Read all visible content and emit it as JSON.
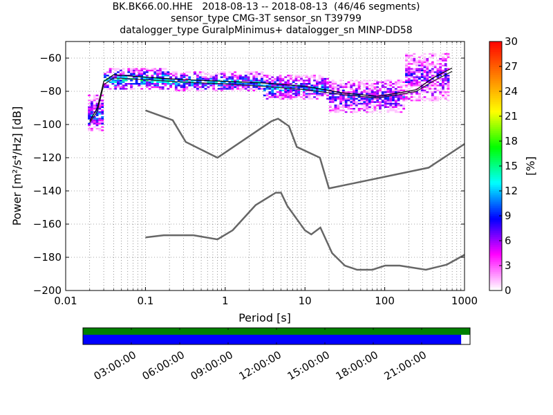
{
  "chart_data": {
    "type": "heatmap",
    "title_lines": [
      "BK.BK66.00.HHE   2018-08-13 -- 2018-08-13  (46/46 segments)",
      "sensor_type CMG-3T sensor_sn T39799",
      "datalogger_type GuralpMinimus+ datalogger_sn MINP-DD58"
    ],
    "xlabel": "Period [s]",
    "ylabel": "Power [m²/s⁴/Hz] [dB]",
    "xscale": "log",
    "xlim": [
      0.01,
      1000
    ],
    "ylim": [
      -200,
      -50
    ],
    "xticks": [
      0.01,
      0.1,
      1,
      10,
      100,
      1000
    ],
    "xtick_labels": [
      "0.01",
      "0.1",
      "1",
      "10",
      "100",
      "1000"
    ],
    "yticks": [
      -200,
      -180,
      -160,
      -140,
      -120,
      -100,
      -80,
      -60
    ],
    "grid": true,
    "colorbar": {
      "label": "[%]",
      "range": [
        0,
        30
      ],
      "ticks": [
        0,
        3,
        6,
        9,
        12,
        15,
        18,
        21,
        24,
        27,
        30
      ],
      "colors": [
        "#ffffff",
        "#ff00ff",
        "#0000ff",
        "#00ffff",
        "#00ff00",
        "#ffff00",
        "#ff8000",
        "#ff0000"
      ]
    },
    "noise_models": [
      {
        "name": "NHNM",
        "points": [
          [
            0.1,
            -91.5
          ],
          [
            0.22,
            -97.4
          ],
          [
            0.32,
            -110.5
          ],
          [
            0.8,
            -120
          ],
          [
            3.8,
            -98
          ],
          [
            4.6,
            -96.5
          ],
          [
            6.3,
            -101
          ],
          [
            7.9,
            -113.5
          ],
          [
            15.4,
            -120
          ],
          [
            20,
            -138.5
          ],
          [
            354.8,
            -126
          ],
          [
            10000,
            -80
          ]
        ]
      },
      {
        "name": "NLNM",
        "points": [
          [
            0.1,
            -168
          ],
          [
            0.17,
            -166.7
          ],
          [
            0.4,
            -166.7
          ],
          [
            0.8,
            -169.2
          ],
          [
            1.24,
            -163.7
          ],
          [
            2.4,
            -148.6
          ],
          [
            4.3,
            -141.1
          ],
          [
            5,
            -141.1
          ],
          [
            6,
            -149
          ],
          [
            10,
            -163.8
          ],
          [
            12,
            -166.2
          ],
          [
            15.6,
            -162.1
          ],
          [
            21.9,
            -177.5
          ],
          [
            31.6,
            -185
          ],
          [
            45,
            -187.5
          ],
          [
            70,
            -187.5
          ],
          [
            101,
            -185
          ],
          [
            154,
            -185
          ],
          [
            328,
            -187.5
          ],
          [
            600,
            -184.4
          ],
          [
            1000,
            -178.5
          ]
        ]
      }
    ],
    "mean_curve": [
      [
        0.02,
        -98
      ],
      [
        0.025,
        -90
      ],
      [
        0.03,
        -74
      ],
      [
        0.04,
        -70
      ],
      [
        0.1,
        -71.5
      ],
      [
        0.3,
        -73
      ],
      [
        1,
        -74
      ],
      [
        3,
        -75
      ],
      [
        10,
        -77
      ],
      [
        30,
        -81
      ],
      [
        80,
        -83
      ],
      [
        150,
        -81
      ],
      [
        250,
        -79
      ],
      [
        400,
        -72
      ],
      [
        700,
        -66
      ]
    ],
    "mode_curve": [
      [
        0.02,
        -99
      ],
      [
        0.025,
        -92
      ],
      [
        0.03,
        -76
      ],
      [
        0.04,
        -72
      ],
      [
        0.1,
        -73
      ],
      [
        0.3,
        -74.5
      ],
      [
        1,
        -75.5
      ],
      [
        3,
        -77
      ],
      [
        10,
        -79
      ],
      [
        30,
        -82
      ],
      [
        80,
        -84
      ],
      [
        150,
        -82
      ],
      [
        250,
        -80
      ],
      [
        400,
        -74
      ],
      [
        700,
        -68
      ]
    ],
    "density": [
      {
        "period": [
          0.019,
          0.03
        ],
        "power": [
          -104,
          -82
        ],
        "dominant_percent": 8
      },
      {
        "period": [
          0.03,
          0.2
        ],
        "power": [
          -79,
          -66
        ],
        "dominant_percent": 11
      },
      {
        "period": [
          0.2,
          3
        ],
        "power": [
          -80,
          -68
        ],
        "dominant_percent": 9
      },
      {
        "period": [
          3,
          20
        ],
        "power": [
          -85,
          -70
        ],
        "dominant_percent": 9
      },
      {
        "period": [
          20,
          180
        ],
        "power": [
          -93,
          -73
        ],
        "dominant_percent": 6
      },
      {
        "period": [
          180,
          650
        ],
        "power": [
          -86,
          -57
        ],
        "dominant_percent": 5
      }
    ],
    "coverage": {
      "time_ticks": [
        "03:00:00",
        "06:00:00",
        "09:00:00",
        "12:00:00",
        "15:00:00",
        "18:00:00",
        "21:00:00"
      ],
      "data_fraction": 0.977,
      "colors": {
        "used": "#008000",
        "data": "#0000ff"
      }
    }
  }
}
